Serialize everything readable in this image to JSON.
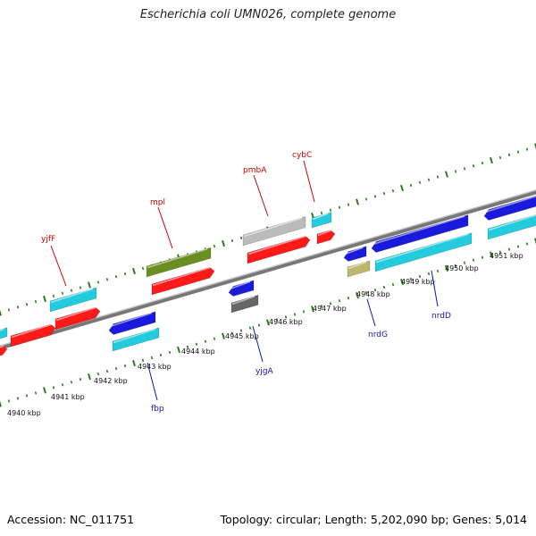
{
  "title": "Escherichia coli UMN026, complete genome",
  "footer": {
    "accession": "Accession: NC_011751",
    "summary": "Topology: circular; Length: 5,202,090 bp; Genes: 5,014"
  },
  "colors": {
    "backbone": "#888888",
    "ticks": "#2e7d1e",
    "cds": "#ff1a1a",
    "blue_gene": "#1a1adc",
    "cyan_gene": "#22ccdd",
    "olive_gene": "#6b8e23",
    "grey_gene": "#bbbbbb",
    "dark_grey_gene": "#666666",
    "khaki_gene": "#bdb76b",
    "label_forward": "#cc0000",
    "label_reverse": "#1111bb"
  },
  "scale_labels": [
    "4940 kbp",
    "4941 kbp",
    "4942 kbp",
    "4943 kbp",
    "4944 kbp",
    "4945 kbp",
    "4946 kbp",
    "4947 kbp",
    "4948 kbp",
    "4949 kbp",
    "4950 kbp",
    "4951 kbp"
  ],
  "gene_labels_forward": [
    "yjfF",
    "mpl",
    "pmbA",
    "cybC"
  ],
  "gene_labels_reverse": [
    "fbp",
    "yjgA",
    "nrdG",
    "nrdD"
  ]
}
